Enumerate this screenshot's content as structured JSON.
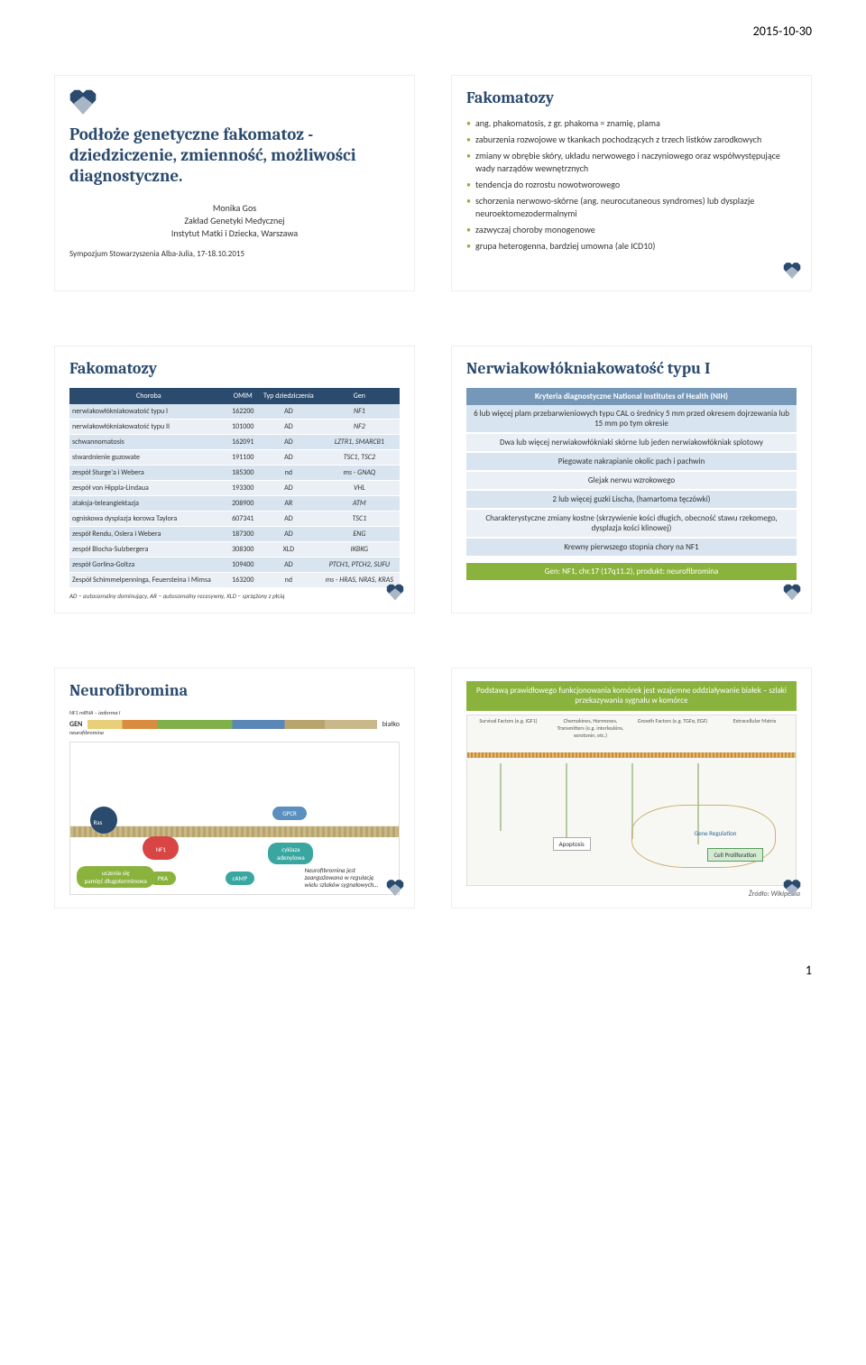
{
  "meta": {
    "date": "2015-10-30",
    "page_num": "1"
  },
  "slide1": {
    "title": "Podłoże genetyczne fakomatoz - dziedziczenie, zmienność, możliwości diagnostyczne.",
    "author": "Monika Gos",
    "dept": "Zakład Genetyki Medycznej",
    "inst": "Instytut Matki i Dziecka, Warszawa",
    "conf": "Sympozjum Stowarzyszenia Alba-Julia, 17-18.10.2015"
  },
  "slide2": {
    "title": "Fakomatozy",
    "bullets": [
      "ang. phakomatosis, z gr. phakoma = znamię, plama",
      "zaburzenia rozwojowe w tkankach pochodzących z trzech listków zarodkowych",
      "zmiany w obrębie skóry, układu nerwowego i naczyniowego oraz współwystępujące wady narządów wewnętrznych",
      "tendencja do rozrostu nowotworowego",
      "schorzenia nerwowo-skórne (ang. neurocutaneous syndromes) lub dysplazje neuroektomezodermalnymi",
      "zazwyczaj choroby monogenowe",
      "grupa heterogenna, bardziej umowna (ale ICD10)"
    ]
  },
  "slide3": {
    "title": "Fakomatozy",
    "headers": [
      "Choroba",
      "OMIM",
      "Typ dziedziczenia",
      "Gen"
    ],
    "rows": [
      [
        "nerwiakowłókniakowatość typu I",
        "162200",
        "AD",
        "NF1"
      ],
      [
        "nerwiakowłókniakowatość typu II",
        "101000",
        "AD",
        "NF2"
      ],
      [
        "schwannomatosis",
        "162091",
        "AD",
        "LZTR1, SMARCB1"
      ],
      [
        "stwardnienie guzowate",
        "191100",
        "AD",
        "TSC1, TSC2"
      ],
      [
        "zespół Sturge'a i Webera",
        "185300",
        "nd",
        "ms - GNAQ"
      ],
      [
        "zespół von Hippla-Lindaua",
        "193300",
        "AD",
        "VHL"
      ],
      [
        "ataksja-teleangiektazja",
        "208900",
        "AR",
        "ATM"
      ],
      [
        "ogniskowa dysplazja korowa Taylora",
        "607341",
        "AD",
        "TSC1"
      ],
      [
        "zespół Rendu, Oslera i Webera",
        "187300",
        "AD",
        "ENG"
      ],
      [
        "zespół Blocha-Sulzbergera",
        "308300",
        "XLD",
        "IKBKG"
      ],
      [
        "zespół Gorlina-Goltza",
        "109400",
        "AD",
        "PTCH1, PTCH2, SUFU"
      ],
      [
        "Zespół Schimmelpenninga, Feuersteina i Mimsa",
        "163200",
        "nd",
        "ms - HRAS, NRAS, KRAS"
      ]
    ],
    "foot": "AD – autosomalny dominujący, AR – autosomalny recesywny, XLD – sprzężony z płcią"
  },
  "slide4": {
    "title": "Nerwiakowłókniakowatość typu I",
    "crit_head": "Kryteria diagnostyczne National Institutes of Health (NIH)",
    "criteria": [
      "6 lub więcej plam przebarwieniowych typu CAL o średnicy 5 mm przed okresem dojrzewania lub 15 mm po tym okresie",
      "Dwa lub więcej nerwiakowłókniaki skórne lub jeden nerwiakowłókniak splotowy",
      "Piegowate nakrapianie okolic pach i pachwin",
      "Glejak nerwu wzrokowego",
      "2 lub więcej guzki Lischa, (hamartoma tęczówki)",
      "Charakterystyczne zmiany kostne (skrzywienie kości długich, obecność stawu rzekomego, dysplazja kości klinowej)",
      "Krewny pierwszego stopnia chory na NF1"
    ],
    "gene": "Gen: NF1, chr.17 (17q11.2), produkt: neurofibromina"
  },
  "slide5": {
    "title": "Neurofibromina",
    "mRNA_label": "NF1 mRNA – izoforma I",
    "gen_label": "GEN",
    "protein_label": "białko",
    "nf_label": "neurofibromina",
    "ras_label": "Ras",
    "nf1_label": "NF1",
    "gpcr_label": "GPCR",
    "pka_label": "PKA",
    "camp_label": "cAMP",
    "cyklaza": "cyklaza adenylowa",
    "uczenie": "uczenie się\npamięć długoterminowa",
    "note": "Neurofibromina jest zaangażowana w regulację wielu szlaków sygnałowych…"
  },
  "slide6": {
    "banner": "Podstawą prawidłowego funkcjonowania komórek jest wzajemne oddziaływanie białek – szlaki przekazywania sygnału w komórce",
    "tops": [
      "Survival Factors (e.g. IGF1)",
      "Chemokines, Hormones, Transmitters (e.g. interleukins, serotonin, etc.)",
      "Growth Factors (e.g. TGFα, EGF)",
      "Extracellular Matrix"
    ],
    "center": [
      "Apoptosis",
      "Gene Regulation",
      "Cell Proliferation"
    ],
    "source": "Źródło: Wikipedia"
  }
}
